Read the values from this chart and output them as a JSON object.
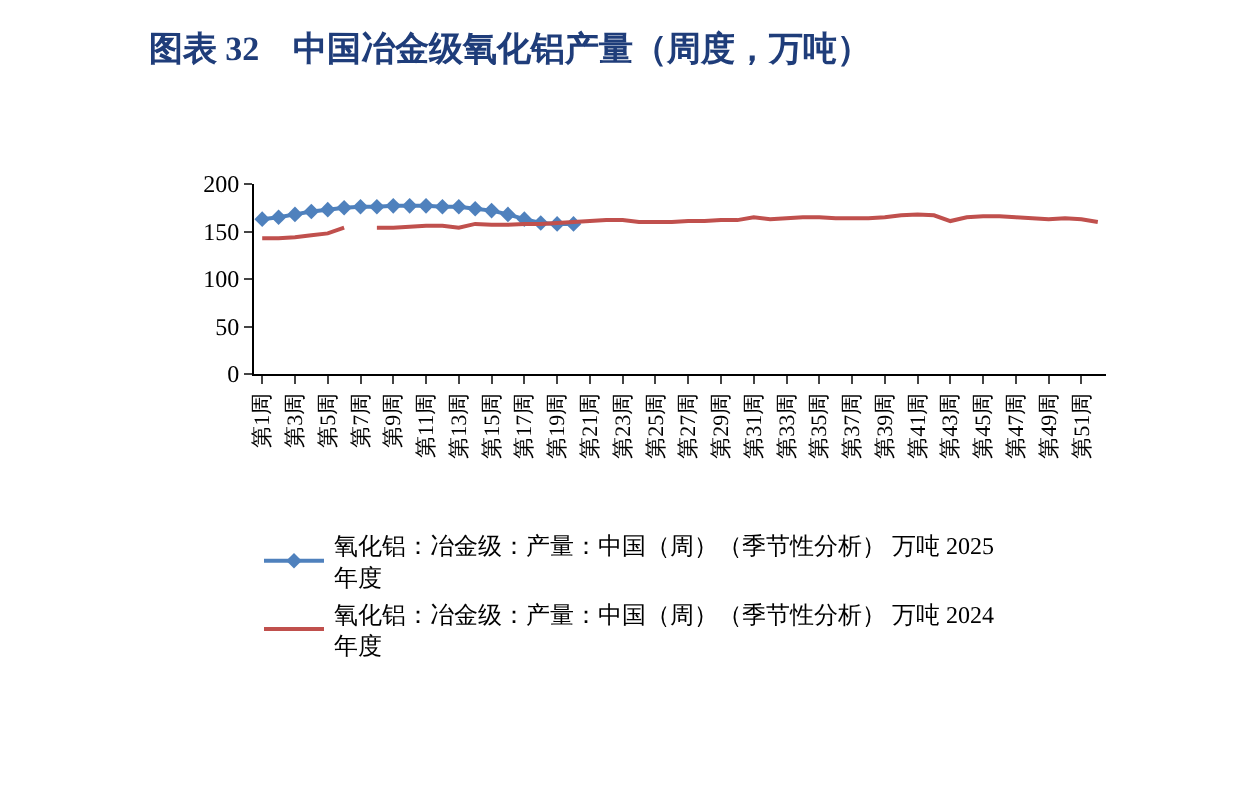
{
  "chart_data": {
    "type": "line",
    "title": "图表 32　中国冶金级氧化铝产量（周度，万吨）",
    "categories": [
      "第1周",
      null,
      "第3周",
      null,
      "第5周",
      null,
      "第7周",
      null,
      "第9周",
      null,
      "第11周",
      null,
      "第13周",
      null,
      "第15周",
      null,
      "第17周",
      null,
      "第19周",
      null,
      "第21周",
      null,
      "第23周",
      null,
      "第25周",
      null,
      "第27周",
      null,
      "第29周",
      null,
      "第31周",
      null,
      "第33周",
      null,
      "第35周",
      null,
      "第37周",
      null,
      "第39周",
      null,
      "第41周",
      null,
      "第43周",
      null,
      "第45周",
      null,
      "第47周",
      null,
      "第49周",
      null,
      "第51周",
      null
    ],
    "series": [
      {
        "name": "氧化铝：冶金级：产量：中国（周）（季节性分析） 万吨 2025年度",
        "color": "#4f81bd",
        "marker": "diamond",
        "values": [
          163,
          165,
          168,
          171,
          173,
          175,
          176,
          176,
          177,
          177,
          177,
          176,
          176,
          174,
          172,
          168,
          163,
          159,
          158,
          158,
          null,
          null,
          null,
          null,
          null,
          null,
          null,
          null,
          null,
          null,
          null,
          null,
          null,
          null,
          null,
          null,
          null,
          null,
          null,
          null,
          null,
          null,
          null,
          null,
          null,
          null,
          null,
          null,
          null,
          null,
          null,
          null
        ]
      },
      {
        "name": "氧化铝：冶金级：产量：中国（周）（季节性分析） 万吨 2024年度",
        "color": "#c0504d",
        "values": [
          143,
          143,
          144,
          146,
          148,
          154,
          null,
          154,
          154,
          155,
          156,
          156,
          154,
          158,
          157,
          157,
          158,
          158,
          159,
          160,
          161,
          162,
          162,
          160,
          160,
          160,
          161,
          161,
          162,
          162,
          165,
          163,
          164,
          165,
          165,
          164,
          164,
          164,
          165,
          167,
          168,
          167,
          161,
          165,
          166,
          166,
          165,
          164,
          163,
          164,
          163,
          160
        ]
      }
    ],
    "ylim": [
      0,
      200
    ],
    "yticks": [
      0,
      50,
      100,
      150,
      200
    ],
    "legend": "bottom"
  }
}
